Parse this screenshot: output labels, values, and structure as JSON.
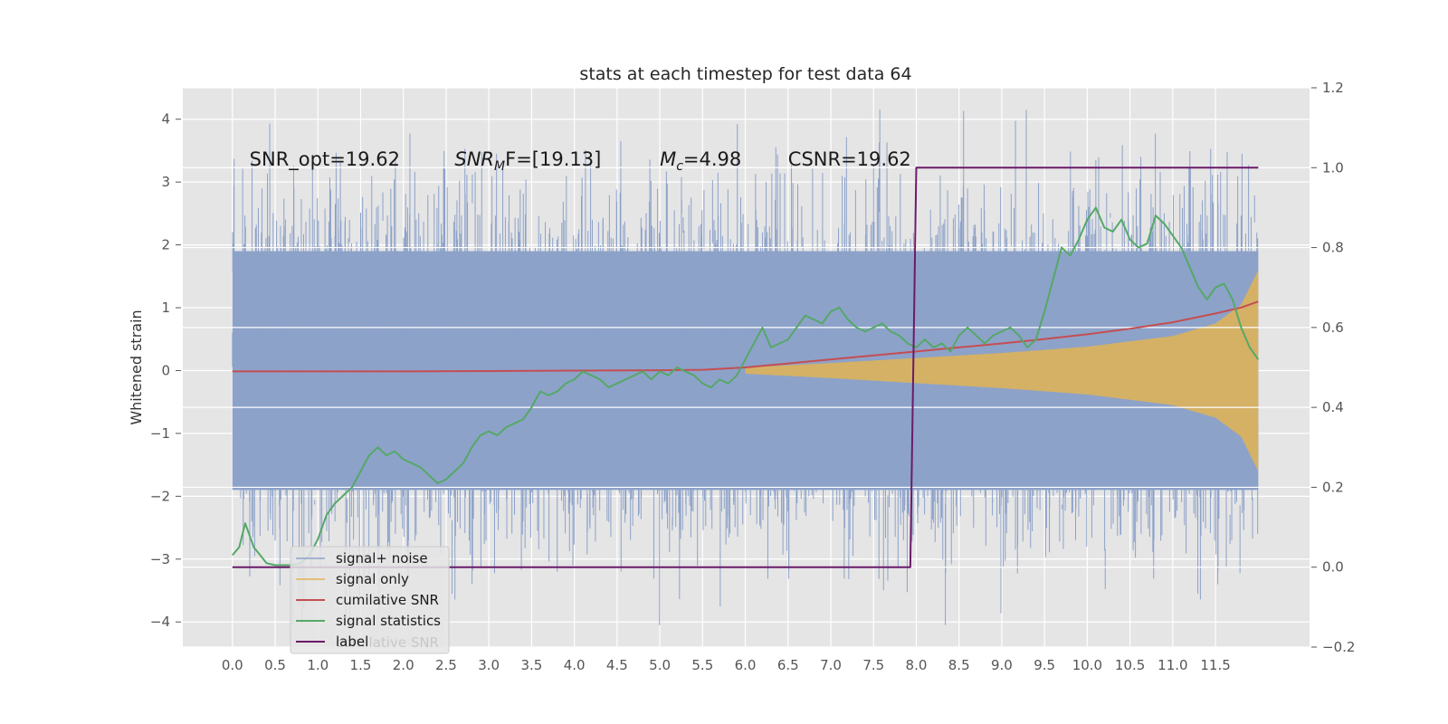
{
  "chart_data": {
    "type": "line",
    "title": "stats at each timestep for test data 64",
    "ylabel": "Whitened strain",
    "xlabel": "",
    "x_ticks": [
      "0.0",
      "0.5",
      "1.0",
      "1.5",
      "2.0",
      "2.5",
      "3.0",
      "3.5",
      "4.0",
      "4.5",
      "5.0",
      "5.5",
      "6.0",
      "6.5",
      "7.0",
      "7.5",
      "8.0",
      "8.5",
      "9.0",
      "9.5",
      "10.0",
      "10.5",
      "11.0",
      "11.5"
    ],
    "xlim": [
      -0.58,
      12.6
    ],
    "ylim_left": [
      -4.4,
      4.5
    ],
    "ylim_right": [
      -0.2,
      1.2
    ],
    "y_ticks_left": [
      "4",
      "3",
      "2",
      "1",
      "0",
      "−1",
      "−2",
      "−3",
      "−4"
    ],
    "y_ticks_right": [
      "1.2",
      "1.0",
      "0.8",
      "0.6",
      "0.4",
      "0.2",
      "0.0",
      "−0.2"
    ],
    "grid": true,
    "legend_position": "lower-left",
    "annotations": [
      {
        "text": "SNR_opt=19.62",
        "x": 0.2,
        "y": 3.35
      },
      {
        "prefix": "SNR",
        "subscript": "M",
        "suffix": "F=[19.13]",
        "x": 2.6,
        "y": 3.35
      },
      {
        "prefix": "M",
        "subscript": "c",
        "suffix": "=4.98",
        "x": 5.0,
        "y": 3.35
      },
      {
        "text": "CSNR=19.62",
        "x": 6.5,
        "y": 3.35
      }
    ],
    "series": [
      {
        "name": "signal+ noise",
        "axis": "left",
        "color": "#8da2c9",
        "sigma": 1.0,
        "x_range": [
          0.0,
          12.0
        ],
        "description": "whitened noisy strain, amplitude spanning roughly −4 to 4"
      },
      {
        "name": "signal only",
        "axis": "left",
        "color": "#e0b454",
        "envelope": {
          "x": [
            6.0,
            7.0,
            8.0,
            9.0,
            10.0,
            11.0,
            11.5,
            11.8,
            12.0
          ],
          "y": [
            0.05,
            0.12,
            0.2,
            0.28,
            0.38,
            0.55,
            0.75,
            1.05,
            1.6
          ]
        },
        "description": "chirp signal whose envelope grows toward merger at t≈12"
      },
      {
        "name": "cumilative SNR",
        "axis": "right",
        "color": "#c44e52",
        "x": [
          0.0,
          1.0,
          2.0,
          3.0,
          4.0,
          5.0,
          5.5,
          6.0,
          6.5,
          7.0,
          7.5,
          8.0,
          8.5,
          9.0,
          9.5,
          10.0,
          10.5,
          11.0,
          11.5,
          11.8,
          12.0
        ],
        "y": [
          0.49,
          0.49,
          0.49,
          0.491,
          0.492,
          0.493,
          0.494,
          0.5,
          0.51,
          0.52,
          0.53,
          0.54,
          0.55,
          0.56,
          0.571,
          0.583,
          0.597,
          0.613,
          0.635,
          0.65,
          0.665
        ]
      },
      {
        "name": "signal statistics",
        "axis": "right",
        "color": "#55a868",
        "x": [
          0.0,
          0.08,
          0.15,
          0.25,
          0.4,
          0.5,
          0.6,
          0.7,
          0.8,
          0.9,
          1.0,
          1.1,
          1.2,
          1.3,
          1.4,
          1.5,
          1.6,
          1.7,
          1.8,
          1.9,
          2.0,
          2.1,
          2.2,
          2.3,
          2.4,
          2.5,
          2.6,
          2.7,
          2.8,
          2.9,
          3.0,
          3.1,
          3.2,
          3.3,
          3.4,
          3.5,
          3.6,
          3.7,
          3.8,
          3.9,
          4.0,
          4.1,
          4.2,
          4.3,
          4.4,
          4.5,
          4.6,
          4.7,
          4.8,
          4.9,
          5.0,
          5.1,
          5.2,
          5.3,
          5.4,
          5.5,
          5.6,
          5.7,
          5.8,
          5.9,
          6.0,
          6.1,
          6.2,
          6.3,
          6.4,
          6.5,
          6.6,
          6.7,
          6.8,
          6.9,
          7.0,
          7.1,
          7.2,
          7.3,
          7.4,
          7.5,
          7.6,
          7.7,
          7.8,
          7.9,
          8.0,
          8.1,
          8.2,
          8.3,
          8.4,
          8.5,
          8.6,
          8.7,
          8.8,
          8.9,
          9.0,
          9.1,
          9.2,
          9.3,
          9.4,
          9.5,
          9.6,
          9.7,
          9.8,
          9.9,
          10.0,
          10.1,
          10.2,
          10.3,
          10.4,
          10.5,
          10.6,
          10.7,
          10.8,
          10.9,
          11.0,
          11.1,
          11.2,
          11.3,
          11.4,
          11.5,
          11.6,
          11.7,
          11.8,
          11.9,
          12.0
        ],
        "y": [
          0.03,
          0.05,
          0.11,
          0.05,
          0.01,
          0.005,
          0.005,
          0.005,
          0.01,
          0.03,
          0.07,
          0.13,
          0.16,
          0.18,
          0.2,
          0.24,
          0.28,
          0.3,
          0.28,
          0.29,
          0.27,
          0.26,
          0.25,
          0.23,
          0.21,
          0.22,
          0.24,
          0.26,
          0.3,
          0.33,
          0.34,
          0.33,
          0.35,
          0.36,
          0.37,
          0.4,
          0.44,
          0.43,
          0.44,
          0.46,
          0.47,
          0.49,
          0.48,
          0.47,
          0.45,
          0.46,
          0.47,
          0.48,
          0.49,
          0.47,
          0.49,
          0.48,
          0.5,
          0.49,
          0.48,
          0.46,
          0.45,
          0.47,
          0.46,
          0.48,
          0.52,
          0.56,
          0.6,
          0.55,
          0.56,
          0.57,
          0.6,
          0.63,
          0.62,
          0.61,
          0.64,
          0.65,
          0.62,
          0.6,
          0.59,
          0.6,
          0.61,
          0.59,
          0.58,
          0.56,
          0.55,
          0.57,
          0.55,
          0.56,
          0.54,
          0.58,
          0.6,
          0.58,
          0.56,
          0.58,
          0.59,
          0.6,
          0.58,
          0.55,
          0.57,
          0.64,
          0.72,
          0.8,
          0.78,
          0.82,
          0.87,
          0.9,
          0.85,
          0.84,
          0.87,
          0.82,
          0.8,
          0.81,
          0.88,
          0.86,
          0.83,
          0.8,
          0.75,
          0.7,
          0.67,
          0.7,
          0.71,
          0.67,
          0.6,
          0.55,
          0.52
        ]
      },
      {
        "name": "label",
        "axis": "right",
        "color": "#6a1b6a",
        "x": [
          0.0,
          7.93,
          8.0,
          12.0
        ],
        "y": [
          0.0,
          0.0,
          1.0,
          1.0
        ]
      }
    ],
    "legend": [
      "signal+ noise",
      "signal only",
      "cumilative SNR",
      "signal statistics",
      "label"
    ],
    "legend_ghost_text": "cumilative SNR"
  }
}
